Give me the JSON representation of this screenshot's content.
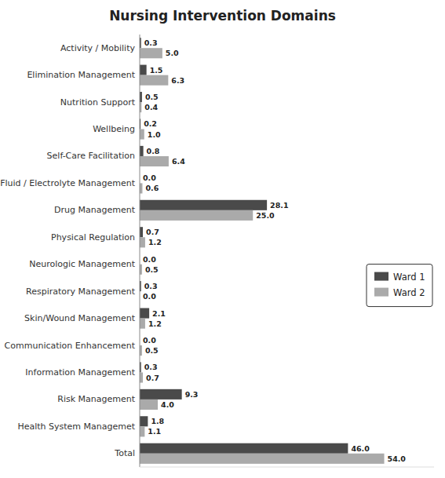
{
  "chart_data": {
    "type": "bar",
    "orientation": "horizontal",
    "title": "Nursing Intervention Domains",
    "categories": [
      "Activity / Mobility",
      "Elimination Management",
      "Nutrition Support",
      "Wellbeing",
      "Self-Care Facilitation",
      "Fluid / Electrolyte Management",
      "Drug Management",
      "Physical Regulation",
      "Neurologic Management",
      "Respiratory Management",
      "Skin/Wound Management",
      "Communication Enhancement",
      "Information Management",
      "Risk Management",
      "Health System Managemet",
      "Total"
    ],
    "series": [
      {
        "name": "Ward 1",
        "color": "#4a4a4a",
        "values": [
          0.3,
          1.5,
          0.5,
          0.2,
          0.8,
          0.0,
          28.1,
          0.7,
          0.0,
          0.3,
          2.1,
          0.0,
          0.3,
          9.3,
          1.8,
          46.0
        ],
        "value_labels": [
          "0.3",
          "1.5",
          "0.5",
          "0.2",
          "0.8",
          "0.0",
          "28.1",
          "0.7",
          "0.0",
          "0.3",
          "2.1",
          "0.0",
          "0.3",
          "9.3",
          "1.8",
          "46.0"
        ]
      },
      {
        "name": "Ward 2",
        "color": "#aaaaaa",
        "values": [
          5.0,
          6.3,
          0.4,
          1.0,
          6.4,
          0.6,
          25.0,
          1.2,
          0.5,
          0.0,
          1.2,
          0.5,
          0.7,
          4.0,
          1.1,
          54.0
        ],
        "value_labels": [
          "5.0",
          "6.3",
          "0.4",
          "1.0",
          "6.4",
          "0.6",
          "25.0",
          "1.2",
          "0.5",
          "0.0",
          "1.2",
          "0.5",
          "0.7",
          "4.0",
          "1.1",
          "54.0"
        ]
      }
    ],
    "xlim": [
      0,
      65
    ],
    "grid": false,
    "legend": "right",
    "data_labels": true,
    "tick_labels": "y"
  }
}
